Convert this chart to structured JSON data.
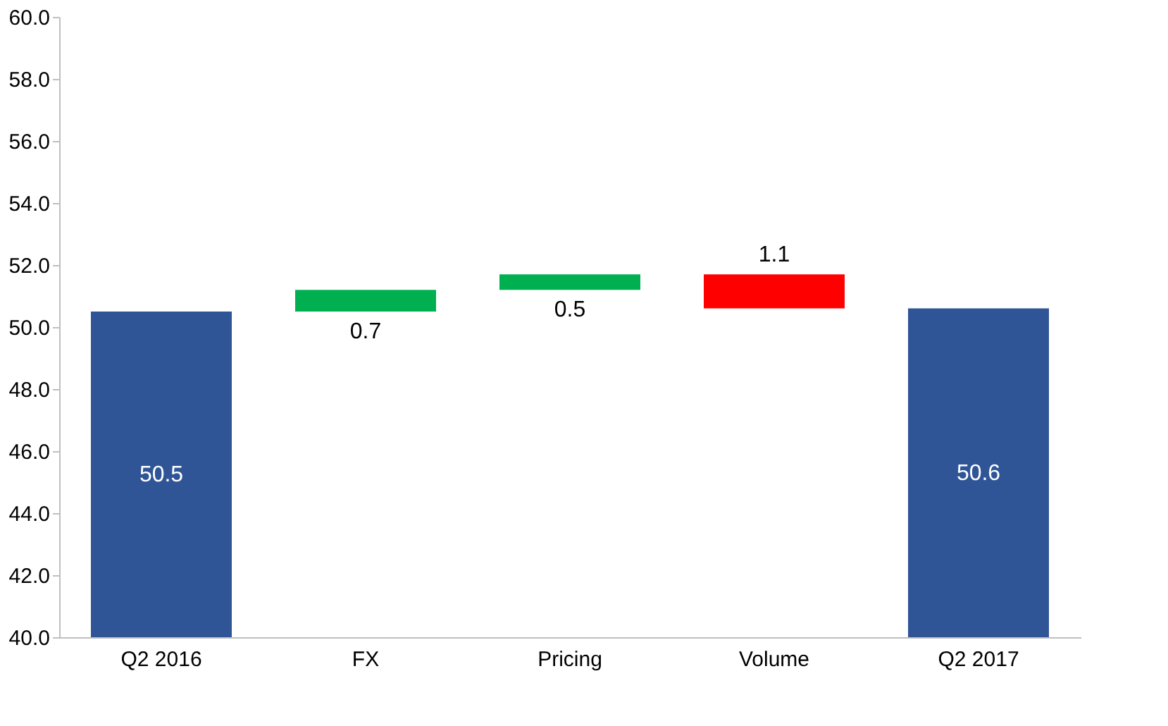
{
  "chart_data": {
    "type": "bar",
    "categories": [
      "Q2 2016",
      "FX",
      "Pricing",
      "Volume",
      "Q2 2017"
    ],
    "values": [
      50.5,
      0.7,
      0.5,
      -1.1,
      50.6
    ],
    "base": [
      null,
      50.5,
      51.2,
      51.7,
      null
    ],
    "colors": [
      "#2f5597",
      "#00b050",
      "#00b050",
      "#ff0000",
      "#2f5597"
    ],
    "value_labels": [
      "50.5",
      "0.7",
      "0.5",
      "1.1",
      "50.6"
    ],
    "ylim": [
      40,
      60
    ],
    "yticks": [
      {
        "value": 40,
        "label": "40.0"
      },
      {
        "value": 42,
        "label": "42.0"
      },
      {
        "value": 44,
        "label": "44.0"
      },
      {
        "value": 46,
        "label": "46.0"
      },
      {
        "value": 48,
        "label": "48.0"
      },
      {
        "value": 50,
        "label": "50.0"
      },
      {
        "value": 52,
        "label": "52.0"
      },
      {
        "value": 54,
        "label": "54.0"
      },
      {
        "value": 56,
        "label": "56.0"
      },
      {
        "value": 58,
        "label": "58.0"
      },
      {
        "value": 60,
        "label": "60.0"
      }
    ],
    "grid": false
  }
}
